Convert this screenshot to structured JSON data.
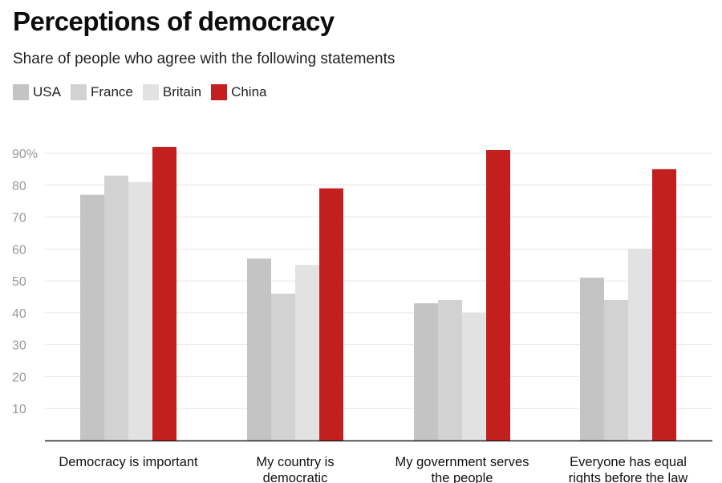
{
  "chart_data": {
    "type": "bar",
    "title": "Perceptions of democracy",
    "subtitle": "Share of people who agree with the following statements",
    "categories": [
      [
        "Democracy is important"
      ],
      [
        "My country is",
        "democratic"
      ],
      [
        "My government serves",
        "the people"
      ],
      [
        "Everyone has equal",
        "rights before the law"
      ]
    ],
    "series": [
      {
        "name": "USA",
        "color": "#c4c4c4",
        "values": [
          77,
          57,
          43,
          51
        ]
      },
      {
        "name": "France",
        "color": "#d2d2d2",
        "values": [
          83,
          46,
          44,
          44
        ]
      },
      {
        "name": "Britain",
        "color": "#e2e2e2",
        "values": [
          81,
          55,
          40,
          60
        ]
      },
      {
        "name": "China",
        "color": "#c41f1f",
        "values": [
          92,
          79,
          91,
          85
        ]
      }
    ],
    "yticks": [
      {
        "value": 10,
        "label": "10"
      },
      {
        "value": 20,
        "label": "20"
      },
      {
        "value": 30,
        "label": "30"
      },
      {
        "value": 40,
        "label": "40"
      },
      {
        "value": 50,
        "label": "50"
      },
      {
        "value": 60,
        "label": "60"
      },
      {
        "value": 70,
        "label": "70"
      },
      {
        "value": 80,
        "label": "80"
      },
      {
        "value": 90,
        "label": "90%"
      }
    ],
    "ylim": [
      0,
      90
    ],
    "grid": true,
    "legend_position": "top-left",
    "xlabel": "",
    "ylabel": ""
  }
}
